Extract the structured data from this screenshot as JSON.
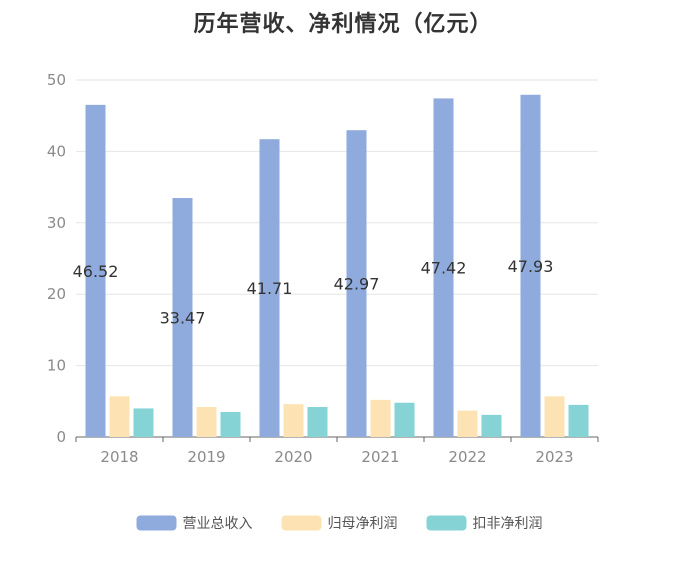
{
  "chart_data": {
    "type": "bar",
    "title": "历年营收、净利情况（亿元）",
    "xlabel": "",
    "ylabel": "",
    "categories": [
      "2018",
      "2019",
      "2020",
      "2021",
      "2022",
      "2023"
    ],
    "ylim": [
      0,
      50
    ],
    "yticks": [
      0,
      10,
      20,
      30,
      40,
      50
    ],
    "grid": true,
    "legend_position": "bottom",
    "series": [
      {
        "name": "营业总收入",
        "color": "#8faadc",
        "values": [
          46.52,
          33.47,
          41.71,
          42.97,
          47.42,
          47.93
        ],
        "labels": [
          "46.52",
          "33.47",
          "41.71",
          "42.97",
          "47.42",
          "47.93"
        ]
      },
      {
        "name": "归母净利润",
        "color": "#fde3b4",
        "values": [
          5.7,
          4.2,
          4.6,
          5.2,
          3.7,
          5.7
        ]
      },
      {
        "name": "扣非净利润",
        "color": "#86d3d6",
        "values": [
          4.0,
          3.5,
          4.2,
          4.8,
          3.1,
          4.5
        ]
      }
    ]
  }
}
